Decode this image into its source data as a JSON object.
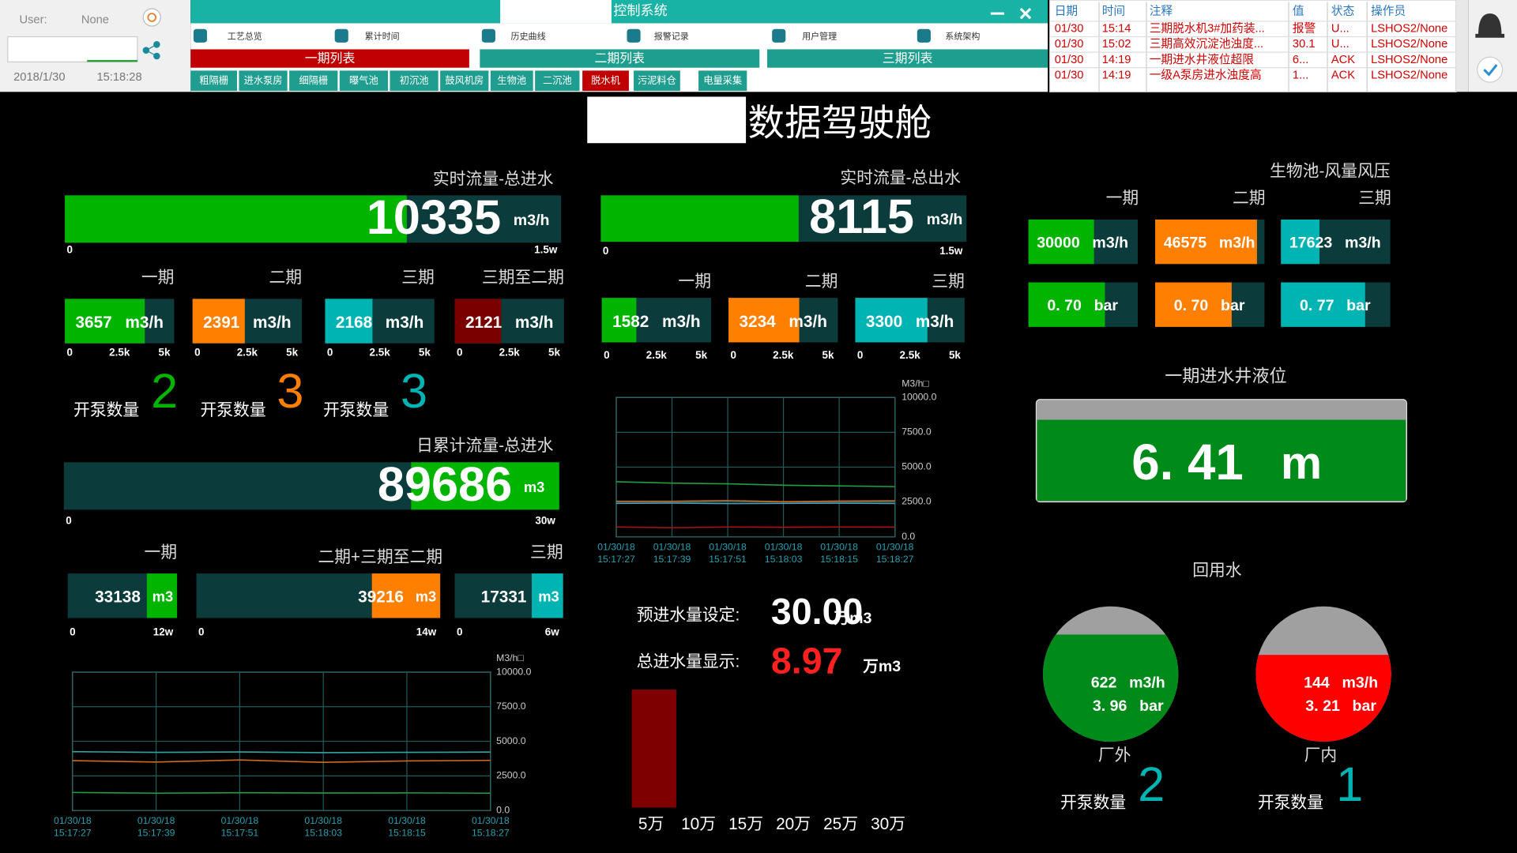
{
  "header": {
    "user_label": "User:",
    "user_value": "None",
    "date": "2018/1/30",
    "time": "15:18:28",
    "title": "控制系统",
    "nav": [
      "工艺总览",
      "累计时间",
      "历史曲线",
      "报警记录",
      "用户管理",
      "系统架构"
    ],
    "phase_tabs": [
      "一期列表",
      "二期列表",
      "三期列表"
    ],
    "sub_tabs": [
      "粗隔栅",
      "进水泵房",
      "细隔栅",
      "曝气池",
      "初沉池",
      "鼓风机房",
      "生物池",
      "二沉池",
      "脱水机",
      "污泥料仓",
      "电量采集"
    ]
  },
  "alarms": {
    "columns": [
      "日期",
      "时间",
      "注释",
      "值",
      "状态",
      "操作员"
    ],
    "rows": [
      [
        "01/30",
        "15:14",
        "三期脱水机3#加药装...",
        "报警",
        "U...",
        "LSHOS2/None"
      ],
      [
        "01/30",
        "15:02",
        "三期高效沉淀池浊度...",
        "30.1",
        "U...",
        "LSHOS2/None"
      ],
      [
        "01/30",
        "14:19",
        "一期进水井液位超限",
        "6...",
        "ACK",
        "LSHOS2/None"
      ],
      [
        "01/30",
        "14:19",
        "一级A泵房进水浊度高",
        "1...",
        "ACK",
        "LSHOS2/None"
      ]
    ]
  },
  "title": "数据驾驶舱",
  "inflow": {
    "title": "实时流量-总进水",
    "value": 10335,
    "unit": "m3/h",
    "color": "#00b400",
    "xticks": [
      0,
      {
        "value": 15000,
        "label": "1.5w"
      }
    ]
  },
  "inflow_phases": [
    {
      "title": "一期",
      "value": 3657,
      "unit": "m3/h",
      "color": "#00b400",
      "xticks": [
        0,
        {
          "value": 2500,
          "label": "2.5k"
        },
        {
          "value": 5000,
          "label": "5k"
        }
      ]
    },
    {
      "title": "二期",
      "value": 2391,
      "unit": "m3/h",
      "color": "#ff7f00",
      "xticks": [
        0,
        {
          "value": 2500,
          "label": "2.5k"
        },
        {
          "value": 5000,
          "label": "5k"
        }
      ]
    },
    {
      "title": "三期",
      "value": 2168,
      "unit": "m3/h",
      "color": "#00b4b4",
      "xticks": [
        0,
        {
          "value": 2500,
          "label": "2.5k"
        },
        {
          "value": 5000,
          "label": "5k"
        }
      ]
    },
    {
      "title": "三期至二期",
      "value": 2121,
      "unit": "m3/h",
      "color": "#7a0000",
      "xticks": [
        0,
        {
          "value": 2500,
          "label": "2.5k"
        },
        {
          "value": 5000,
          "label": "5k"
        }
      ]
    }
  ],
  "inflow_pumps": {
    "label": "开泵数量",
    "counts": [
      2,
      3,
      3
    ],
    "colors": [
      "#00b400",
      "#ff7f00",
      "#00b4b4"
    ]
  },
  "daily": {
    "title": "日累计流量-总进水",
    "value": 89686,
    "unit": "m3",
    "color": "#00b400",
    "fill_from": "right",
    "xticks": [
      0,
      {
        "value": 300000,
        "label": "30w"
      }
    ]
  },
  "daily_phases": [
    {
      "title": "一期",
      "value": 33138,
      "unit": "m3",
      "color": "#00b400",
      "fill_from": "right",
      "xticks": [
        0,
        {
          "value": 120000,
          "label": "12w"
        }
      ]
    },
    {
      "title": "二期+三期至二期",
      "value": 39216,
      "unit": "m3",
      "color": "#ff7f00",
      "fill_from": "right",
      "xticks": [
        0,
        {
          "value": 140000,
          "label": "14w"
        }
      ]
    },
    {
      "title": "三期",
      "value": 17331,
      "unit": "m3",
      "color": "#00b4b4",
      "fill_from": "right",
      "xticks": [
        0,
        {
          "value": 60000,
          "label": "6w"
        }
      ]
    }
  ],
  "inflow_trend": {
    "type": "line",
    "y_unit": "M3/h□",
    "grid": true,
    "categories": [
      [
        "01/30/18",
        "15:17:27"
      ],
      [
        "01/30/18",
        "15:17:39"
      ],
      [
        "01/30/18",
        "15:17:51"
      ],
      [
        "01/30/18",
        "15:18:03"
      ],
      [
        "01/30/18",
        "15:18:15"
      ],
      [
        "01/30/18",
        "15:18:27"
      ]
    ],
    "ylim": [
      0,
      10000
    ],
    "yticks": [
      {
        "value": 0,
        "label": "0.0"
      },
      {
        "value": 2500,
        "label": "2500.0"
      },
      {
        "value": 5000,
        "label": "5000.0"
      },
      {
        "value": 7500,
        "label": "7500.0"
      },
      {
        "value": 10000,
        "label": "10000.0"
      }
    ],
    "series": [
      {
        "color": "#2fa6a6",
        "values": [
          4250,
          4200,
          4230,
          4180,
          4200,
          4220
        ]
      },
      {
        "color": "#d2691e",
        "values": [
          3600,
          3500,
          3650,
          3480,
          3580,
          3620
        ]
      },
      {
        "color": "#1fa040",
        "values": [
          1300,
          1250,
          1280,
          1260,
          1270,
          1250
        ]
      }
    ]
  },
  "outflow": {
    "title": "实时流量-总出水",
    "value": 8115,
    "unit": "m3/h",
    "color": "#00b400",
    "xticks": [
      0,
      {
        "value": 15000,
        "label": "1.5w"
      }
    ]
  },
  "outflow_phases": [
    {
      "title": "一期",
      "value": 1582,
      "unit": "m3/h",
      "color": "#00b400",
      "xticks": [
        0,
        {
          "value": 2500,
          "label": "2.5k"
        },
        {
          "value": 5000,
          "label": "5k"
        }
      ]
    },
    {
      "title": "二期",
      "value": 3234,
      "unit": "m3/h",
      "color": "#ff7f00",
      "xticks": [
        0,
        {
          "value": 2500,
          "label": "2.5k"
        },
        {
          "value": 5000,
          "label": "5k"
        }
      ]
    },
    {
      "title": "三期",
      "value": 3300,
      "unit": "m3/h",
      "color": "#00b4b4",
      "xticks": [
        0,
        {
          "value": 2500,
          "label": "2.5k"
        },
        {
          "value": 5000,
          "label": "5k"
        }
      ]
    }
  ],
  "outflow_trend": {
    "type": "line",
    "y_unit": "M3/h□",
    "grid": true,
    "categories": [
      [
        "01/30/18",
        "15:17:27"
      ],
      [
        "01/30/18",
        "15:17:39"
      ],
      [
        "01/30/18",
        "15:17:51"
      ],
      [
        "01/30/18",
        "15:18:03"
      ],
      [
        "01/30/18",
        "15:18:15"
      ],
      [
        "01/30/18",
        "15:18:27"
      ]
    ],
    "ylim": [
      0,
      10000
    ],
    "yticks": [
      {
        "value": 0,
        "label": "0.0"
      },
      {
        "value": 2500,
        "label": "2500.0"
      },
      {
        "value": 5000,
        "label": "5000.0"
      },
      {
        "value": 7500,
        "label": "7500.0"
      },
      {
        "value": 10000,
        "label": "10000.0"
      }
    ],
    "series": [
      {
        "color": "#1fa040",
        "values": [
          3950,
          3850,
          3800,
          3700,
          3650,
          3600
        ]
      },
      {
        "color": "#d2691e",
        "values": [
          2550,
          2550,
          2600,
          2520,
          2560,
          2580
        ]
      },
      {
        "color": "#4aa0c0",
        "values": [
          2400,
          2420,
          2380,
          2400,
          2410,
          2390
        ]
      },
      {
        "color": "#b01010",
        "values": [
          700,
          650,
          700,
          680,
          700,
          690
        ]
      }
    ]
  },
  "planned": {
    "label": "预进水量设定:",
    "value": 30,
    "value_label": "30.00",
    "unit": "万m3",
    "color": "#ffffff"
  },
  "total": {
    "label": "总进水量显示:",
    "value": 8.97,
    "unit": "万m3",
    "color": "#ff2020"
  },
  "total_bar": {
    "type": "bar",
    "categories": [
      "5万",
      "10万",
      "15万",
      "20万",
      "25万",
      "30万"
    ],
    "ylim": [
      0,
      10
    ],
    "color": "#7f0000"
  },
  "bio": {
    "title": "生物池-风量风压",
    "phases": [
      "一期",
      "二期",
      "三期"
    ],
    "colors": [
      "#00b400",
      "#ff7f00",
      "#00b4b4"
    ],
    "flow": {
      "unit": "m3/h",
      "values": [
        30000,
        46575,
        17623
      ],
      "xlim": [
        0,
        50000
      ]
    },
    "pressure": {
      "unit": "bar",
      "values": [
        0.7,
        0.7,
        0.77
      ],
      "value_labels": [
        "0. 70",
        "0. 70",
        "0. 77"
      ],
      "xlim": [
        0,
        1
      ]
    }
  },
  "level": {
    "title": "一期进水井液位",
    "value": 6.41,
    "value_label": "6. 41",
    "unit": "m",
    "ylim": [
      0,
      8
    ],
    "color": "#008a1a"
  },
  "reuse": {
    "title": "回用水",
    "pump_label": "开泵数量",
    "flow_unit": "m3/h",
    "pressure_unit": "bar",
    "pump_color": "#00b4b4",
    "ylim": [
      0,
      5
    ],
    "sites": [
      {
        "name": "厂外",
        "flow": 622,
        "pressure": 3.96,
        "pressure_label": "3. 96",
        "pumps": 2,
        "color": "#008a1a"
      },
      {
        "name": "厂内",
        "flow": 144,
        "pressure": 3.21,
        "pressure_label": "3. 21",
        "pumps": 1,
        "color": "#ff0000"
      }
    ]
  }
}
